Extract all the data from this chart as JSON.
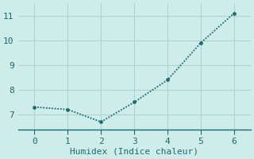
{
  "x": [
    0,
    1,
    2,
    3,
    4,
    5,
    6
  ],
  "y": [
    7.3,
    7.2,
    6.7,
    7.5,
    8.4,
    9.9,
    11.1
  ],
  "xlabel": "Humidex (Indice chaleur)",
  "ylim": [
    6.4,
    11.5
  ],
  "xlim": [
    -0.5,
    6.5
  ],
  "yticks": [
    7,
    8,
    9,
    10,
    11
  ],
  "xticks": [
    0,
    1,
    2,
    3,
    4,
    5,
    6
  ],
  "line_color": "#1a6b6b",
  "bg_color": "#ceecea",
  "grid_color": "#aed4d0",
  "axis_color": "#1a6b6b",
  "xlabel_fontsize": 8,
  "tick_fontsize": 8
}
